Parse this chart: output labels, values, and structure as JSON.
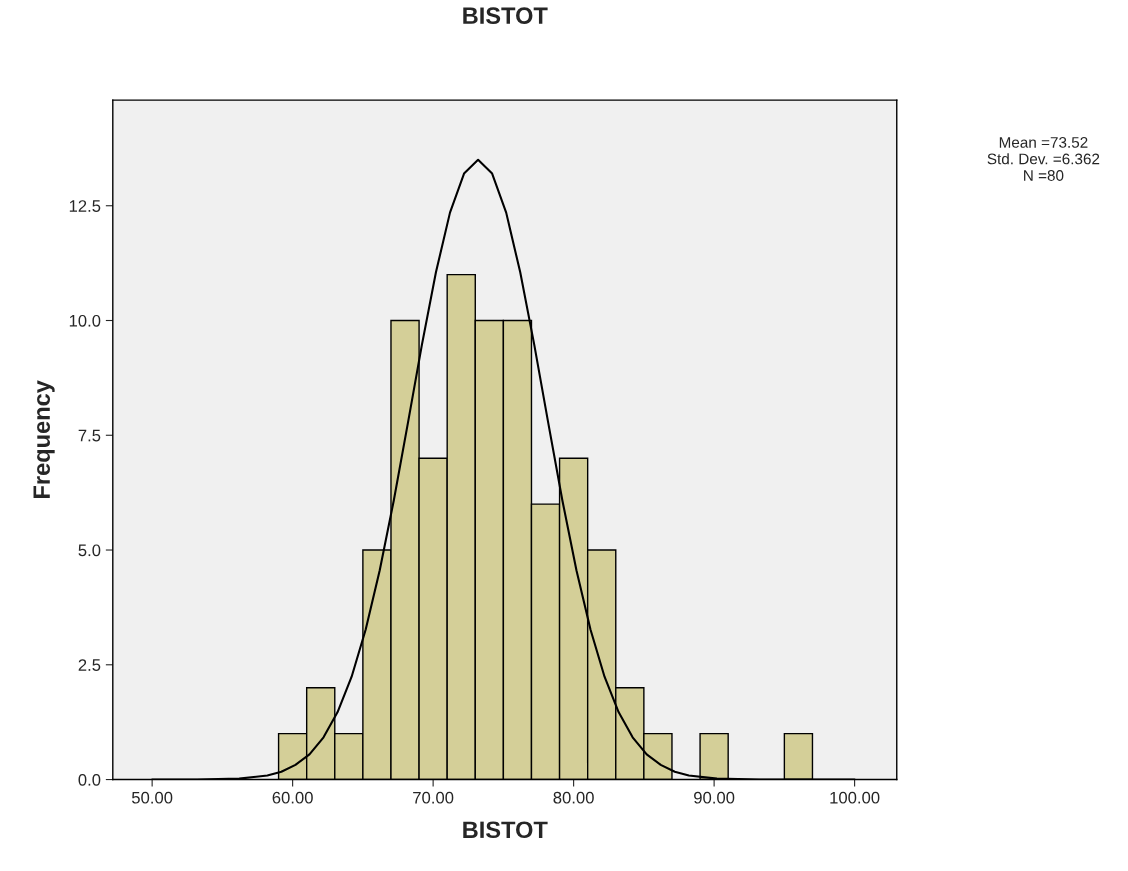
{
  "chart_data": {
    "type": "histogram",
    "title": "BISTOT",
    "xlabel": "BISTOT",
    "ylabel": "Frequency",
    "series": [
      {
        "color": "#d4cf98",
        "bins": [
          59,
          61,
          63,
          65,
          67,
          69,
          71,
          73,
          75,
          77,
          79,
          81,
          83,
          85,
          87,
          89,
          91,
          93,
          95,
          97
        ],
        "values": [
          1,
          2,
          1,
          5,
          10,
          7,
          11,
          10,
          10,
          6,
          7,
          5,
          2,
          1,
          0,
          1,
          0,
          0,
          1
        ]
      },
      {
        "type": "line",
        "color": "#000000",
        "x": [
          50,
          53.2,
          56.2,
          58.2,
          59.2,
          60.2,
          61.2,
          62.2,
          63.2,
          64.2,
          65.2,
          66.2,
          67.2,
          68.2,
          69.2,
          70.2,
          71.2,
          72.2,
          73.2,
          74.2,
          75.2,
          76.2,
          77.2,
          78.2,
          79.2,
          80.2,
          81.2,
          82.2,
          83.2,
          84.2,
          85.2,
          86.2,
          87.2,
          88.2,
          90.2,
          93.2,
          100
        ],
        "values": [
          0,
          0,
          0.02,
          0.09,
          0.17,
          0.32,
          0.55,
          0.92,
          1.47,
          2.24,
          3.27,
          4.56,
          6.08,
          7.76,
          9.47,
          11.05,
          12.35,
          13.2,
          13.5,
          13.2,
          12.35,
          11.05,
          9.47,
          7.76,
          6.08,
          4.56,
          3.27,
          2.24,
          1.47,
          0.92,
          0.55,
          0.32,
          0.17,
          0.09,
          0.02,
          0,
          0
        ]
      }
    ],
    "xlim": [
      47.2,
      103.0
    ],
    "ylim": [
      0,
      14.8
    ],
    "xticks": [
      {
        "value": 50,
        "label": "50.00"
      },
      {
        "value": 60,
        "label": "60.00"
      },
      {
        "value": 70,
        "label": "70.00"
      },
      {
        "value": 80,
        "label": "80.00"
      },
      {
        "value": 90,
        "label": "90.00"
      },
      {
        "value": 100,
        "label": "100.00"
      }
    ],
    "yticks": [
      {
        "value": 0,
        "label": "0.0"
      },
      2.5,
      {
        "value": 5,
        "label": "5.0"
      },
      7.5,
      {
        "value": 10,
        "label": "10.0"
      },
      12.5
    ],
    "annotations": [
      "Mean =73.52",
      "Std. Dev. =6.362",
      "N =80"
    ],
    "grid": false,
    "legend": false
  }
}
